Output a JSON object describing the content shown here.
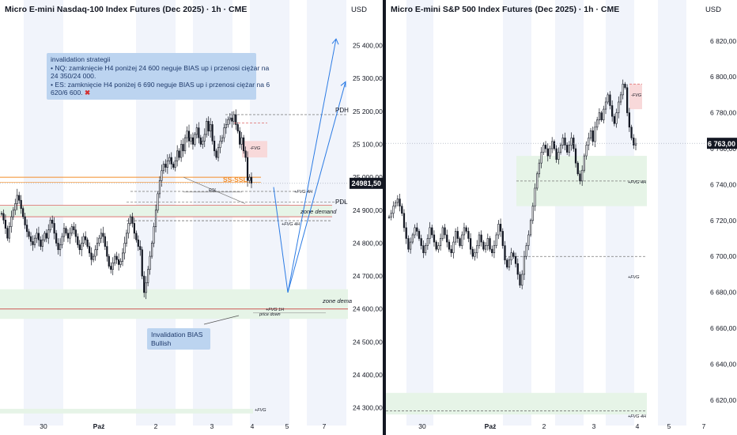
{
  "colors": {
    "up": "#131722",
    "down": "#131722",
    "green_zone": "#e6f4e7",
    "red_zone": "#f8d9da",
    "blue_line": "#2b7be4",
    "price_label": "#131722"
  },
  "left": {
    "title": "Micro E-mini Nasdaq-100 Index Futures (Dec 2025) · 1h · CME",
    "currency": "USD",
    "last_price": "24981,50",
    "annotation_top": {
      "heading": "invalidation strategii",
      "lines": [
        "• NQ: zamknięcie H4 poniżej 24 600 neguje BIAS up i przenosi ciężar na",
        "24 350/24 000.",
        "• ES: zamknięcie H4 poniżej 6 690 neguje BIAS up i przenosi ciężar na 6",
        "620/6 600."
      ],
      "cross_icon": "✖"
    },
    "annotation_bottom": {
      "line1": "Invalidation  BIAS",
      "line2": "Bullish"
    },
    "labels": {
      "pdh": "PDH",
      "pdl": "PDL",
      "ssl": "SS-SSL",
      "fvg": "-FVG",
      "fvg4h": "+FVG 4H",
      "fvg4h_b": "+FVG 4H",
      "zone_demand": "zone demand",
      "zone_dema": "zone dema",
      "fvg_1h": "+FVG 1H",
      "price_down": "price down",
      "fvg_low": "+FVG",
      "eqlow": "EQL"
    }
  },
  "right": {
    "title": "Micro E-mini S&P 500 Index Futures (Dec 2025) · 1h · CME",
    "currency": "USD",
    "last_price": "6 763,00",
    "labels": {
      "fvg": "-FVG",
      "fvg4h": "+FVG 4H",
      "fvg_mid": "+FVG",
      "fvg_low": "+FVG 4H"
    }
  },
  "chart_data": [
    {
      "type": "candlestick",
      "title": "Micro E-mini Nasdaq-100 Index Futures (Dec 2025) · 1h · CME",
      "x_ticks": [
        "30",
        "Paź",
        "2",
        "3",
        "4",
        "5",
        "7"
      ],
      "y_ticks": [
        "25 400,00",
        "25 300,00",
        "25 200,00",
        "25 100,00",
        "25 000,00",
        "24 900,00",
        "24 800,00",
        "24 700,00",
        "24 600,00",
        "24 500,00",
        "24 400,00",
        "24 300,00"
      ],
      "ylim": [
        24280,
        25490
      ],
      "last": 24981.5,
      "levels": {
        "PDH": 25190,
        "PDL": 24925,
        "SS-SSL": 25000
      },
      "projection": [
        [
          24970,
          24650
        ],
        [
          24650,
          25420
        ],
        [
          24650,
          25290
        ]
      ],
      "zones": [
        {
          "name": "zone demand",
          "from": 24880,
          "to": 24915
        },
        {
          "name": "zone dema",
          "from": 24570,
          "to": 24660
        },
        {
          "name": "-FVG",
          "from": 25060,
          "to": 25110
        }
      ],
      "closes": [
        24890,
        24870,
        24845,
        24815,
        24850,
        24880,
        24900,
        24920,
        24945,
        24930,
        24905,
        24880,
        24855,
        24835,
        24820,
        24805,
        24795,
        24815,
        24830,
        24810,
        24790,
        24810,
        24830,
        24815,
        24840,
        24870,
        24860,
        24830,
        24800,
        24780,
        24795,
        24820,
        24845,
        24830,
        24815,
        24830,
        24850,
        24840,
        24820,
        24795,
        24780,
        24800,
        24820,
        24810,
        24790,
        24770,
        24750,
        24760,
        24780,
        24800,
        24815,
        24830,
        24820,
        24790,
        24760,
        24730,
        24720,
        24740,
        24760,
        24750,
        24735,
        24745,
        24770,
        24800,
        24830,
        24860,
        24880,
        24860,
        24830,
        24810,
        24790,
        24780,
        24700,
        24650,
        24680,
        24720,
        24760,
        24800,
        24850,
        24900,
        24950,
        24990,
        25020,
        25040,
        25030,
        25050,
        25060,
        25040,
        25030,
        25050,
        25080,
        25060,
        25100,
        25080,
        25120,
        25140,
        25110,
        25120,
        25100,
        25130,
        25150,
        25120,
        25100,
        25110,
        25130,
        25170,
        25140,
        25160,
        25110,
        25080,
        25060,
        25090,
        25110,
        25120,
        25150,
        25160,
        25175,
        25180,
        25170,
        25190,
        25160,
        25140,
        25100,
        25120,
        25080,
        25060,
        24990,
        25000,
        24981.5
      ],
      "x_range_note": "Sep 29 – Oct 5"
    },
    {
      "type": "candlestick",
      "title": "Micro E-mini S&P 500 Index Futures (Dec 2025) · 1h · CME",
      "x_ticks": [
        "30",
        "Paź",
        "2",
        "3",
        "4",
        "5",
        "7"
      ],
      "y_ticks": [
        "6 820,00",
        "6 800,00",
        "6 780,00",
        "6 760,00",
        "6 740,00",
        "6 720,00",
        "6 700,00",
        "6 680,00",
        "6 660,00",
        "6 640,00",
        "6 620,00"
      ],
      "ylim": [
        6612,
        6834
      ],
      "last": 6763,
      "zones": [
        {
          "name": "+FVG 4H",
          "from": 6728,
          "to": 6756
        },
        {
          "name": "-FVG",
          "from": 6782,
          "to": 6796
        }
      ],
      "closes": [
        6722,
        6724,
        6728,
        6730,
        6732,
        6728,
        6724,
        6716,
        6710,
        6704,
        6708,
        6712,
        6716,
        6714,
        6710,
        6706,
        6702,
        6706,
        6710,
        6716,
        6712,
        6708,
        6704,
        6706,
        6710,
        6716,
        6712,
        6708,
        6704,
        6702,
        6708,
        6714,
        6710,
        6706,
        6712,
        6716,
        6714,
        6710,
        6704,
        6700,
        6702,
        6706,
        6712,
        6708,
        6704,
        6706,
        6710,
        6704,
        6702,
        6706,
        6712,
        6718,
        6714,
        6706,
        6698,
        6694,
        6698,
        6702,
        6700,
        6696,
        6690,
        6684,
        6690,
        6700,
        6706,
        6712,
        6720,
        6728,
        6738,
        6746,
        6752,
        6758,
        6762,
        6760,
        6756,
        6760,
        6764,
        6760,
        6754,
        6758,
        6762,
        6766,
        6762,
        6758,
        6762,
        6766,
        6760,
        6752,
        6746,
        6742,
        6748,
        6756,
        6762,
        6766,
        6770,
        6764,
        6772,
        6776,
        6780,
        6776,
        6782,
        6786,
        6790,
        6784,
        6778,
        6774,
        6780,
        6786,
        6790,
        6796,
        6794,
        6780,
        6772,
        6766,
        6762,
        6763
      ]
    }
  ]
}
